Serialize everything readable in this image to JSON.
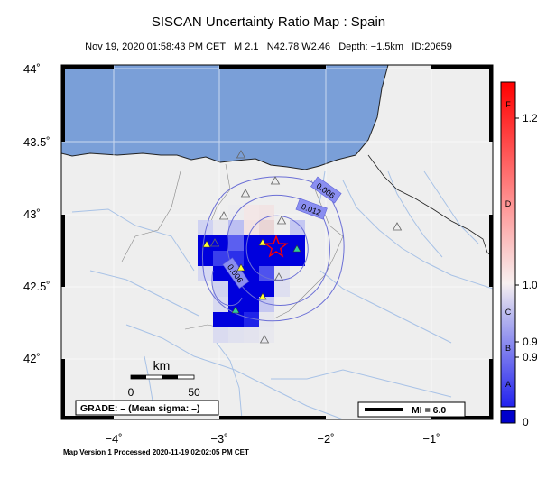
{
  "map": {
    "title": "SISCAN Uncertainty Ratio Map : Spain",
    "subtitle": "Nov 19, 2020 01:58:43 PM CET   M 2.1   N42.78 W2.46   Depth: −1.5km   ID:20659",
    "footer": "Map Version 1 Processed 2020-11-19 02:02:05 PM CET",
    "lat_ticks": [
      "44˚",
      "43.5˚",
      "43˚",
      "42.5˚",
      "42˚"
    ],
    "lon_ticks": [
      "−4˚",
      "−3˚",
      "−2˚",
      "−1˚"
    ],
    "contour_labels": [
      "0.006",
      "0.012",
      "0.006"
    ],
    "scalebar": {
      "unit": "km",
      "ticks": [
        "0",
        "50"
      ]
    },
    "grade_text": "GRADE: – (Mean sigma: –)",
    "mi_text": "MI = 6.0",
    "epicenter": {
      "lat": 42.78,
      "lon": -2.46
    },
    "colors": {
      "sea": "#7a9fd8",
      "land": "#eeeeee",
      "high": "#0000dd",
      "star": "#ff0000"
    }
  },
  "colorbar": {
    "right_labels": [
      "1.2",
      "1.0",
      "0.9",
      "0.9",
      "0"
    ],
    "inner_labels": [
      "F",
      "D",
      "C",
      "B",
      "A"
    ]
  }
}
